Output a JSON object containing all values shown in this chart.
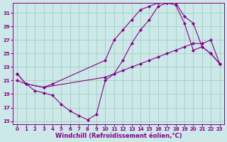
{
  "xlabel": "Windchill (Refroidissement éolien,°C)",
  "bg_color": "#cce8e8",
  "line_color": "#880088",
  "xlim": [
    -0.5,
    23.5
  ],
  "ylim": [
    14.5,
    32.5
  ],
  "xticks": [
    0,
    1,
    2,
    3,
    4,
    5,
    6,
    7,
    8,
    9,
    10,
    11,
    12,
    13,
    14,
    15,
    16,
    17,
    18,
    19,
    20,
    21,
    22,
    23
  ],
  "yticks": [
    15,
    17,
    19,
    21,
    23,
    25,
    27,
    29,
    31
  ],
  "line1_x": [
    0,
    1,
    2,
    3,
    4,
    5,
    6,
    7,
    8,
    9,
    10,
    11,
    12,
    13,
    14,
    15,
    16,
    17,
    18,
    19,
    20,
    21,
    22,
    23
  ],
  "line1_y": [
    22.0,
    20.5,
    19.5,
    19.2,
    18.8,
    17.5,
    16.5,
    15.8,
    15.2,
    16.0,
    21.0,
    22.0,
    24.0,
    26.5,
    28.5,
    30.0,
    32.0,
    32.5,
    32.2,
    29.5,
    25.5,
    26.0,
    25.0,
    23.5
  ],
  "line2_x": [
    0,
    1,
    3,
    4,
    10,
    11,
    12,
    13,
    14,
    15,
    16,
    17,
    18,
    19,
    20,
    21,
    22,
    23
  ],
  "line2_y": [
    22.0,
    20.5,
    20.0,
    20.5,
    24.0,
    27.0,
    28.5,
    30.0,
    31.5,
    32.0,
    32.5,
    32.5,
    32.5,
    30.5,
    29.5,
    26.0,
    25.0,
    23.5
  ],
  "line3_x": [
    0,
    1,
    3,
    10,
    11,
    12,
    13,
    14,
    15,
    16,
    17,
    18,
    19,
    20,
    21,
    22,
    23
  ],
  "line3_y": [
    21.0,
    20.5,
    20.0,
    21.5,
    22.0,
    22.5,
    23.0,
    23.5,
    24.0,
    24.5,
    25.0,
    25.5,
    26.0,
    26.5,
    26.5,
    27.0,
    23.5
  ],
  "marker": "D",
  "markersize": 2.0,
  "linewidth": 0.8,
  "grid_color": "#99ccbb",
  "grid_linewidth": 0.5,
  "tick_labelsize": 5.0,
  "xlabel_fontsize": 6.0
}
